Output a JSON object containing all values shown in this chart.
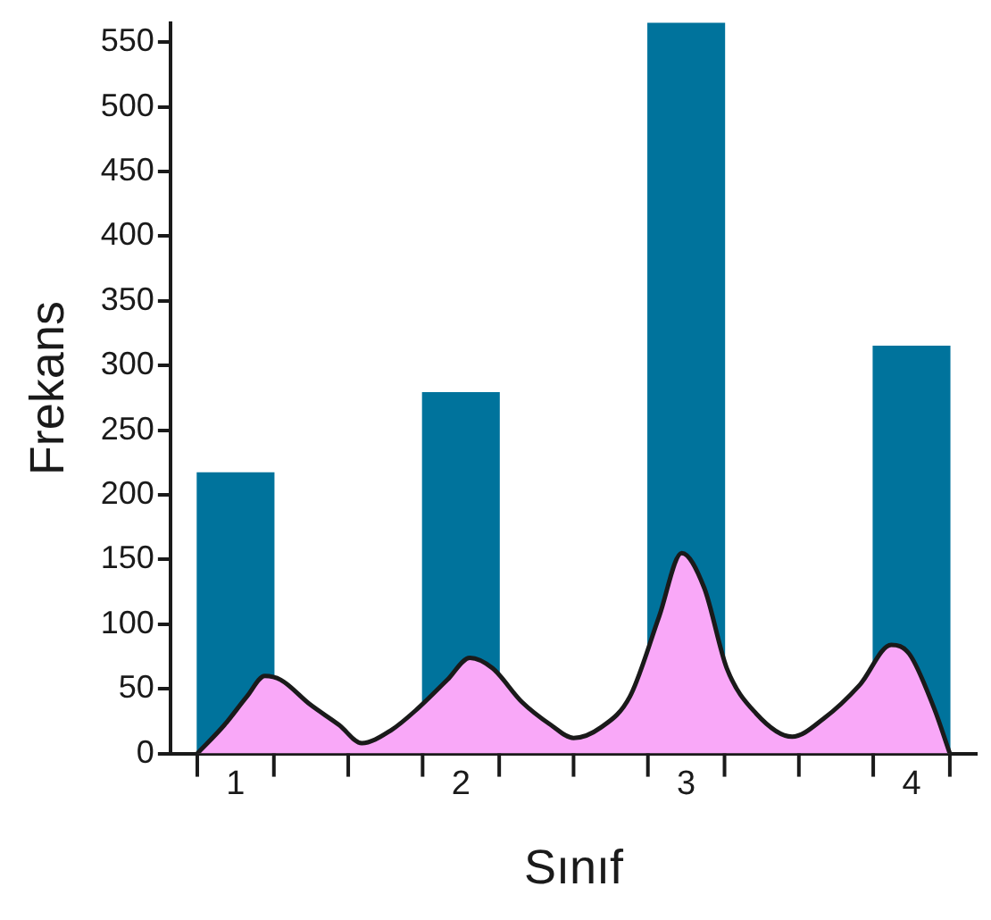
{
  "chart_data": {
    "type": "bar",
    "xlabel": "Sınıf",
    "ylabel": "Frekans",
    "xlim": [
      0.83,
      4.17
    ],
    "ylim": [
      0,
      565
    ],
    "xticks": [
      {
        "value": 0.83,
        "label": null
      },
      1,
      {
        "value": 1.17,
        "label": null
      },
      {
        "value": 1.5,
        "label": null
      },
      {
        "value": 1.83,
        "label": null
      },
      2,
      {
        "value": 2.17,
        "label": null
      },
      {
        "value": 2.5,
        "label": null
      },
      {
        "value": 2.83,
        "label": null
      },
      3,
      {
        "value": 3.17,
        "label": null
      },
      {
        "value": 3.5,
        "label": null
      },
      {
        "value": 3.83,
        "label": null
      },
      4,
      {
        "value": 4.17,
        "label": null
      }
    ],
    "yticks": [
      0,
      50,
      100,
      150,
      200,
      250,
      300,
      350,
      400,
      450,
      500,
      550
    ],
    "grid": false,
    "legend": false,
    "series": [
      {
        "color": "#00739c",
        "x": [
          1,
          2,
          3,
          4
        ],
        "values": [
          217,
          279,
          565,
          315
        ]
      },
      {
        "type": "area",
        "color": "#f9a8f8",
        "marker": "none",
        "x": [
          0.83,
          0.95,
          1.05,
          1.13,
          1.2,
          1.33,
          1.46,
          1.56,
          1.69,
          1.81,
          1.94,
          2.04,
          2.14,
          2.27,
          2.4,
          2.5,
          2.62,
          2.75,
          2.88,
          2.98,
          3.08,
          3.18,
          3.31,
          3.47,
          3.61,
          3.77,
          3.91,
          3.99,
          4.1,
          4.17
        ],
        "values": [
          0,
          22,
          44,
          60,
          57,
          38,
          22,
          8,
          18,
          35,
          57,
          74,
          66,
          40,
          22,
          12,
          20,
          44,
          106,
          155,
          128,
          66,
          31,
          13,
          27,
          53,
          84,
          77,
          35,
          0
        ]
      }
    ]
  }
}
